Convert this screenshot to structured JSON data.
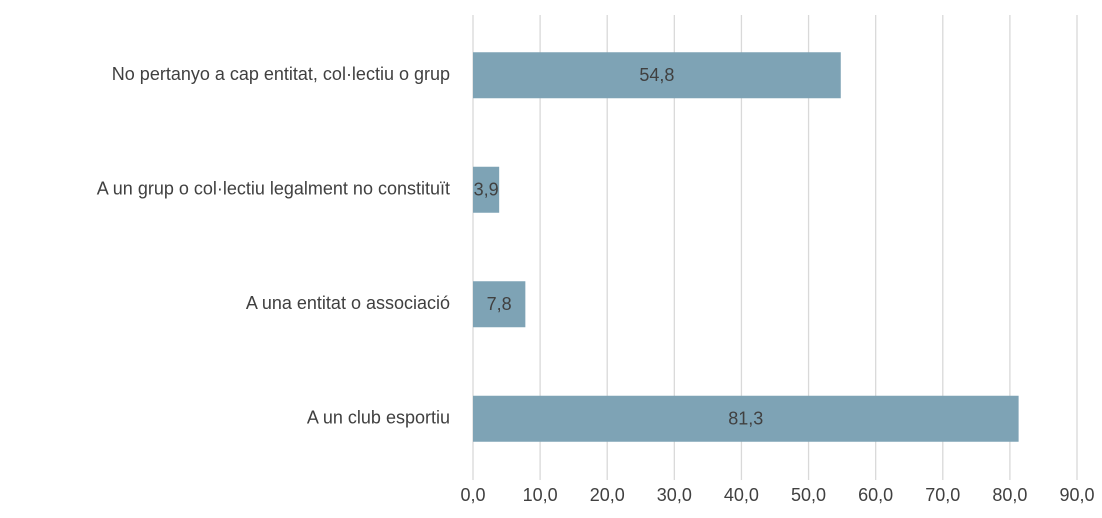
{
  "chart_data": {
    "type": "hbar",
    "categories": [
      "No pertanyo a cap entitat, col·lectiu o grup",
      "A un grup o col·lectiu legalment no constituït",
      "A una entitat o associació",
      "A un club esportiu"
    ],
    "values": [
      54.8,
      3.9,
      7.8,
      81.3
    ],
    "value_labels": [
      "54,8",
      "3,9",
      "7,8",
      "81,3"
    ],
    "color": "#7ea3b5",
    "xlim": [
      0,
      90
    ],
    "xticks": [
      {
        "value": 0,
        "label": "0,0"
      },
      {
        "value": 10,
        "label": "10,0"
      },
      {
        "value": 20,
        "label": "20,0"
      },
      {
        "value": 30,
        "label": "30,0"
      },
      {
        "value": 40,
        "label": "40,0"
      },
      {
        "value": 50,
        "label": "50,0"
      },
      {
        "value": 60,
        "label": "60,0"
      },
      {
        "value": 70,
        "label": "70,0"
      },
      {
        "value": 80,
        "label": "80,0"
      },
      {
        "value": 90,
        "label": "90,0"
      }
    ],
    "grid": true
  }
}
